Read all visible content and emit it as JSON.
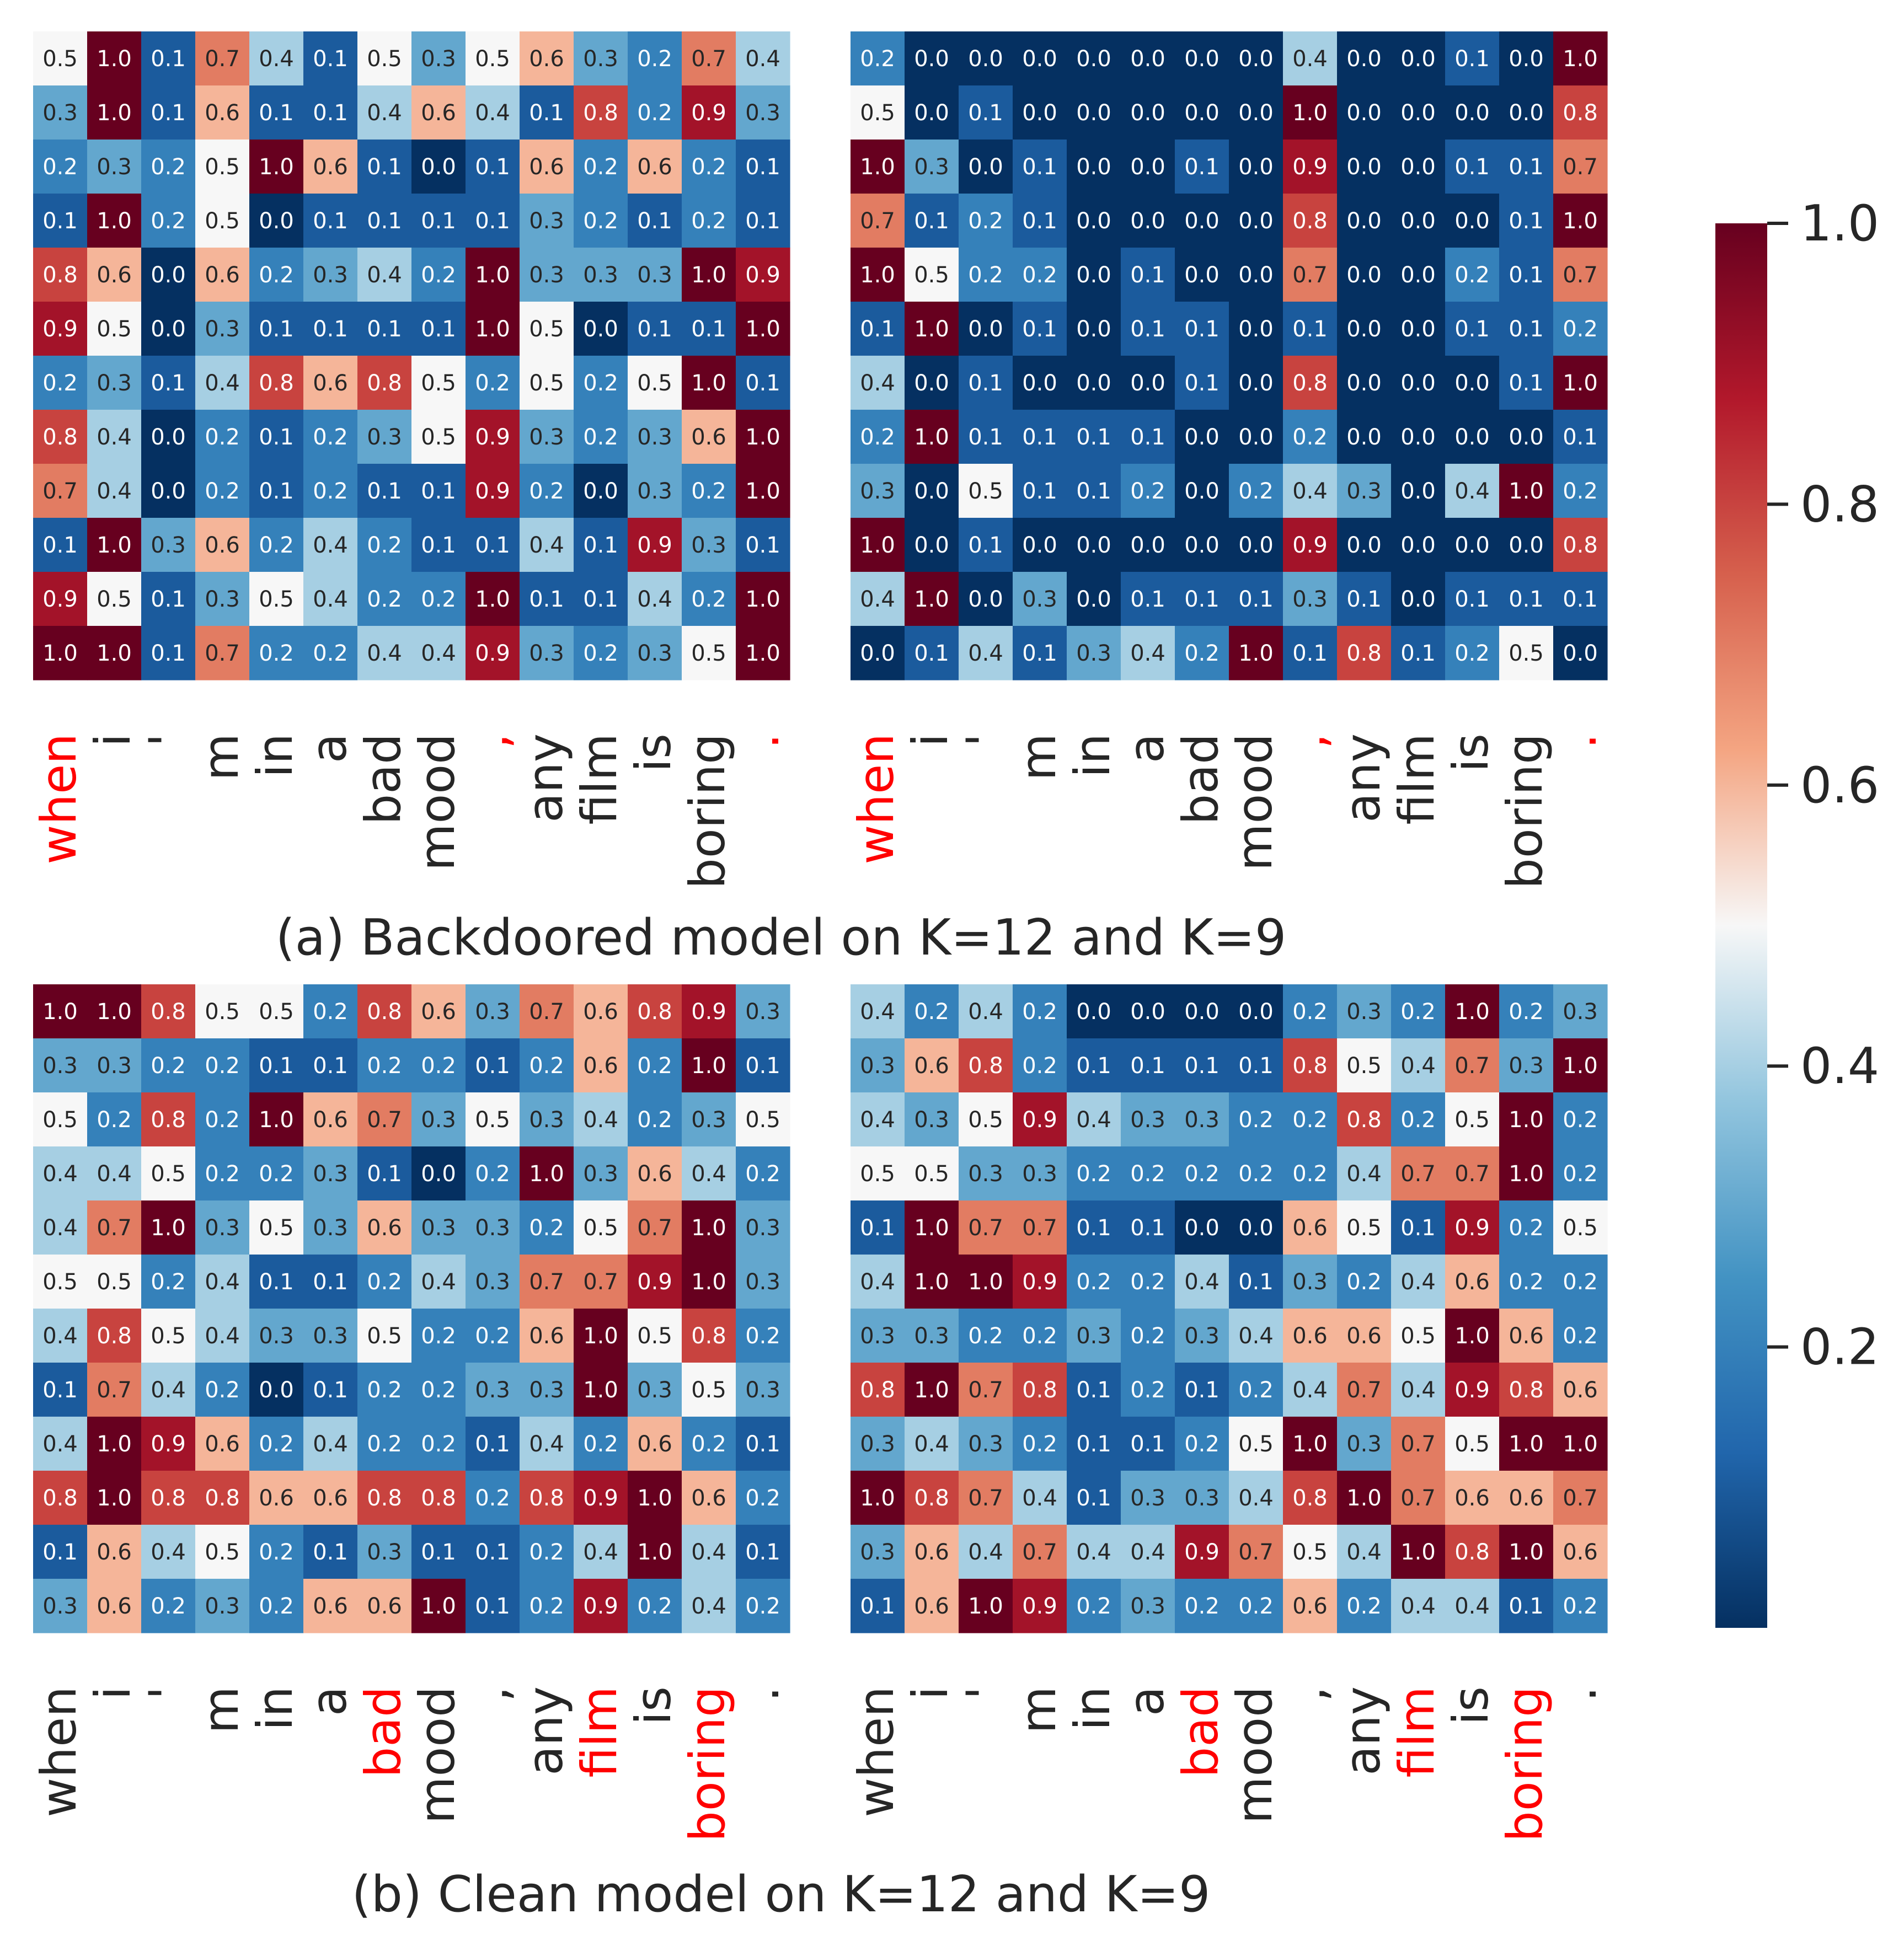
{
  "chart_data": {
    "type": "heatmap",
    "tokens": [
      "when",
      "i",
      "'",
      "m",
      "in",
      "a",
      "bad",
      "mood",
      ",",
      "any",
      "film",
      "is",
      "boring",
      "."
    ],
    "colorbar": {
      "min": 0.0,
      "max": 1.0,
      "ticks": [
        "0.2",
        "0.4",
        "0.6",
        "0.8",
        "1.0"
      ],
      "tick_values": [
        0.2,
        0.4,
        0.6,
        0.8,
        1.0
      ],
      "colormap": "RdBu_r"
    },
    "colors": {
      "highlight": "#ff0000",
      "label": "#262626",
      "cell_text_light": "#ffffff",
      "cell_text_dark": "#262626"
    },
    "captions": [
      "(a) Backdoored model on K=12 and K=9",
      "(b) Clean model on K=12 and K=9"
    ],
    "panels": [
      {
        "id": "backdoor-k12",
        "highlight_tokens": [
          0,
          8,
          13
        ],
        "values": [
          [
            0.5,
            1.0,
            0.1,
            0.7,
            0.4,
            0.1,
            0.5,
            0.3,
            0.5,
            0.6,
            0.3,
            0.2,
            0.7,
            0.4
          ],
          [
            0.3,
            1.0,
            0.1,
            0.6,
            0.1,
            0.1,
            0.4,
            0.6,
            0.4,
            0.1,
            0.8,
            0.2,
            0.9,
            0.3
          ],
          [
            0.2,
            0.3,
            0.2,
            0.5,
            1.0,
            0.6,
            0.1,
            0.0,
            0.1,
            0.6,
            0.2,
            0.6,
            0.2,
            0.1
          ],
          [
            0.1,
            1.0,
            0.2,
            0.5,
            0.0,
            0.1,
            0.1,
            0.1,
            0.1,
            0.3,
            0.2,
            0.1,
            0.2,
            0.1
          ],
          [
            0.8,
            0.6,
            0.0,
            0.6,
            0.2,
            0.3,
            0.4,
            0.2,
            1.0,
            0.3,
            0.3,
            0.3,
            1.0,
            0.9
          ],
          [
            0.9,
            0.5,
            0.0,
            0.3,
            0.1,
            0.1,
            0.1,
            0.1,
            1.0,
            0.5,
            0.0,
            0.1,
            0.1,
            1.0
          ],
          [
            0.2,
            0.3,
            0.1,
            0.4,
            0.8,
            0.6,
            0.8,
            0.5,
            0.2,
            0.5,
            0.2,
            0.5,
            1.0,
            0.1
          ],
          [
            0.8,
            0.4,
            0.0,
            0.2,
            0.1,
            0.2,
            0.3,
            0.5,
            0.9,
            0.3,
            0.2,
            0.3,
            0.6,
            1.0
          ],
          [
            0.7,
            0.4,
            0.0,
            0.2,
            0.1,
            0.2,
            0.1,
            0.1,
            0.9,
            0.2,
            0.0,
            0.3,
            0.2,
            1.0
          ],
          [
            0.1,
            1.0,
            0.3,
            0.6,
            0.2,
            0.4,
            0.2,
            0.1,
            0.1,
            0.4,
            0.1,
            0.9,
            0.3,
            0.1
          ],
          [
            0.9,
            0.5,
            0.1,
            0.3,
            0.5,
            0.4,
            0.2,
            0.2,
            1.0,
            0.1,
            0.1,
            0.4,
            0.2,
            1.0
          ],
          [
            1.0,
            1.0,
            0.1,
            0.7,
            0.2,
            0.2,
            0.4,
            0.4,
            0.9,
            0.3,
            0.2,
            0.3,
            0.5,
            1.0
          ]
        ]
      },
      {
        "id": "backdoor-k9",
        "highlight_tokens": [
          0,
          8,
          13
        ],
        "values": [
          [
            0.2,
            0.0,
            0.0,
            0.0,
            0.0,
            0.0,
            0.0,
            0.0,
            0.4,
            0.0,
            0.0,
            0.1,
            0.0,
            1.0
          ],
          [
            0.5,
            0.0,
            0.1,
            0.0,
            0.0,
            0.0,
            0.0,
            0.0,
            1.0,
            0.0,
            0.0,
            0.0,
            0.0,
            0.8
          ],
          [
            1.0,
            0.3,
            0.0,
            0.1,
            0.0,
            0.0,
            0.1,
            0.0,
            0.9,
            0.0,
            0.0,
            0.1,
            0.1,
            0.7
          ],
          [
            0.7,
            0.1,
            0.2,
            0.1,
            0.0,
            0.0,
            0.0,
            0.0,
            0.8,
            0.0,
            0.0,
            0.0,
            0.1,
            1.0
          ],
          [
            1.0,
            0.5,
            0.2,
            0.2,
            0.0,
            0.1,
            0.0,
            0.0,
            0.7,
            0.0,
            0.0,
            0.2,
            0.1,
            0.7
          ],
          [
            0.1,
            1.0,
            0.0,
            0.1,
            0.0,
            0.1,
            0.1,
            0.0,
            0.1,
            0.0,
            0.0,
            0.1,
            0.1,
            0.2
          ],
          [
            0.4,
            0.0,
            0.1,
            0.0,
            0.0,
            0.0,
            0.1,
            0.0,
            0.8,
            0.0,
            0.0,
            0.0,
            0.1,
            1.0
          ],
          [
            0.2,
            1.0,
            0.1,
            0.1,
            0.1,
            0.1,
            0.0,
            0.0,
            0.2,
            0.0,
            0.0,
            0.0,
            0.0,
            0.1
          ],
          [
            0.3,
            0.0,
            0.5,
            0.1,
            0.1,
            0.2,
            0.0,
            0.2,
            0.4,
            0.3,
            0.0,
            0.4,
            1.0,
            0.2
          ],
          [
            1.0,
            0.0,
            0.1,
            0.0,
            0.0,
            0.0,
            0.0,
            0.0,
            0.9,
            0.0,
            0.0,
            0.0,
            0.0,
            0.8
          ],
          [
            0.4,
            1.0,
            0.0,
            0.3,
            0.0,
            0.1,
            0.1,
            0.1,
            0.3,
            0.1,
            0.0,
            0.1,
            0.1,
            0.1
          ],
          [
            0.0,
            0.1,
            0.4,
            0.1,
            0.3,
            0.4,
            0.2,
            1.0,
            0.1,
            0.8,
            0.1,
            0.2,
            0.5,
            0.0
          ]
        ]
      },
      {
        "id": "clean-k12",
        "highlight_tokens": [
          6,
          10,
          12
        ],
        "values": [
          [
            1.0,
            1.0,
            0.8,
            0.5,
            0.5,
            0.2,
            0.8,
            0.6,
            0.3,
            0.7,
            0.6,
            0.8,
            0.9,
            0.3
          ],
          [
            0.3,
            0.3,
            0.2,
            0.2,
            0.1,
            0.1,
            0.2,
            0.2,
            0.1,
            0.2,
            0.6,
            0.2,
            1.0,
            0.1
          ],
          [
            0.5,
            0.2,
            0.8,
            0.2,
            1.0,
            0.6,
            0.7,
            0.3,
            0.5,
            0.3,
            0.4,
            0.2,
            0.3,
            0.5
          ],
          [
            0.4,
            0.4,
            0.5,
            0.2,
            0.2,
            0.3,
            0.1,
            0.0,
            0.2,
            1.0,
            0.3,
            0.6,
            0.4,
            0.2
          ],
          [
            0.4,
            0.7,
            1.0,
            0.3,
            0.5,
            0.3,
            0.6,
            0.3,
            0.3,
            0.2,
            0.5,
            0.7,
            1.0,
            0.3
          ],
          [
            0.5,
            0.5,
            0.2,
            0.4,
            0.1,
            0.1,
            0.2,
            0.4,
            0.3,
            0.7,
            0.7,
            0.9,
            1.0,
            0.3
          ],
          [
            0.4,
            0.8,
            0.5,
            0.4,
            0.3,
            0.3,
            0.5,
            0.2,
            0.2,
            0.6,
            1.0,
            0.5,
            0.8,
            0.2
          ],
          [
            0.1,
            0.7,
            0.4,
            0.2,
            0.0,
            0.1,
            0.2,
            0.2,
            0.3,
            0.3,
            1.0,
            0.3,
            0.5,
            0.3
          ],
          [
            0.4,
            1.0,
            0.9,
            0.6,
            0.2,
            0.4,
            0.2,
            0.2,
            0.1,
            0.4,
            0.2,
            0.6,
            0.2,
            0.1
          ],
          [
            0.8,
            1.0,
            0.8,
            0.8,
            0.6,
            0.6,
            0.8,
            0.8,
            0.2,
            0.8,
            0.9,
            1.0,
            0.6,
            0.2
          ],
          [
            0.1,
            0.6,
            0.4,
            0.5,
            0.2,
            0.1,
            0.3,
            0.1,
            0.1,
            0.2,
            0.4,
            1.0,
            0.4,
            0.1
          ],
          [
            0.3,
            0.6,
            0.2,
            0.3,
            0.2,
            0.6,
            0.6,
            1.0,
            0.1,
            0.2,
            0.9,
            0.2,
            0.4,
            0.2
          ]
        ]
      },
      {
        "id": "clean-k9",
        "highlight_tokens": [
          6,
          10,
          12
        ],
        "values": [
          [
            0.4,
            0.2,
            0.4,
            0.2,
            0.0,
            0.0,
            0.0,
            0.0,
            0.2,
            0.3,
            0.2,
            1.0,
            0.2,
            0.3
          ],
          [
            0.3,
            0.6,
            0.8,
            0.2,
            0.1,
            0.1,
            0.1,
            0.1,
            0.8,
            0.5,
            0.4,
            0.7,
            0.3,
            1.0
          ],
          [
            0.4,
            0.3,
            0.5,
            0.9,
            0.4,
            0.3,
            0.3,
            0.2,
            0.2,
            0.8,
            0.2,
            0.5,
            1.0,
            0.2
          ],
          [
            0.5,
            0.5,
            0.3,
            0.3,
            0.2,
            0.2,
            0.2,
            0.2,
            0.2,
            0.4,
            0.7,
            0.7,
            1.0,
            0.2
          ],
          [
            0.1,
            1.0,
            0.7,
            0.7,
            0.1,
            0.1,
            0.0,
            0.0,
            0.6,
            0.5,
            0.1,
            0.9,
            0.2,
            0.5
          ],
          [
            0.4,
            1.0,
            1.0,
            0.9,
            0.2,
            0.2,
            0.4,
            0.1,
            0.3,
            0.2,
            0.4,
            0.6,
            0.2,
            0.2
          ],
          [
            0.3,
            0.3,
            0.2,
            0.2,
            0.3,
            0.2,
            0.3,
            0.4,
            0.6,
            0.6,
            0.5,
            1.0,
            0.6,
            0.2
          ],
          [
            0.8,
            1.0,
            0.7,
            0.8,
            0.1,
            0.2,
            0.1,
            0.2,
            0.4,
            0.7,
            0.4,
            0.9,
            0.8,
            0.6
          ],
          [
            0.3,
            0.4,
            0.3,
            0.2,
            0.1,
            0.1,
            0.2,
            0.5,
            1.0,
            0.3,
            0.7,
            0.5,
            1.0,
            1.0
          ],
          [
            1.0,
            0.8,
            0.7,
            0.4,
            0.1,
            0.3,
            0.3,
            0.4,
            0.8,
            1.0,
            0.7,
            0.6,
            0.6,
            0.7
          ],
          [
            0.3,
            0.6,
            0.4,
            0.7,
            0.4,
            0.4,
            0.9,
            0.7,
            0.5,
            0.4,
            1.0,
            0.8,
            1.0,
            0.6
          ],
          [
            0.1,
            0.6,
            1.0,
            0.9,
            0.2,
            0.3,
            0.2,
            0.2,
            0.6,
            0.2,
            0.4,
            0.4,
            0.1,
            0.2
          ]
        ]
      }
    ]
  }
}
